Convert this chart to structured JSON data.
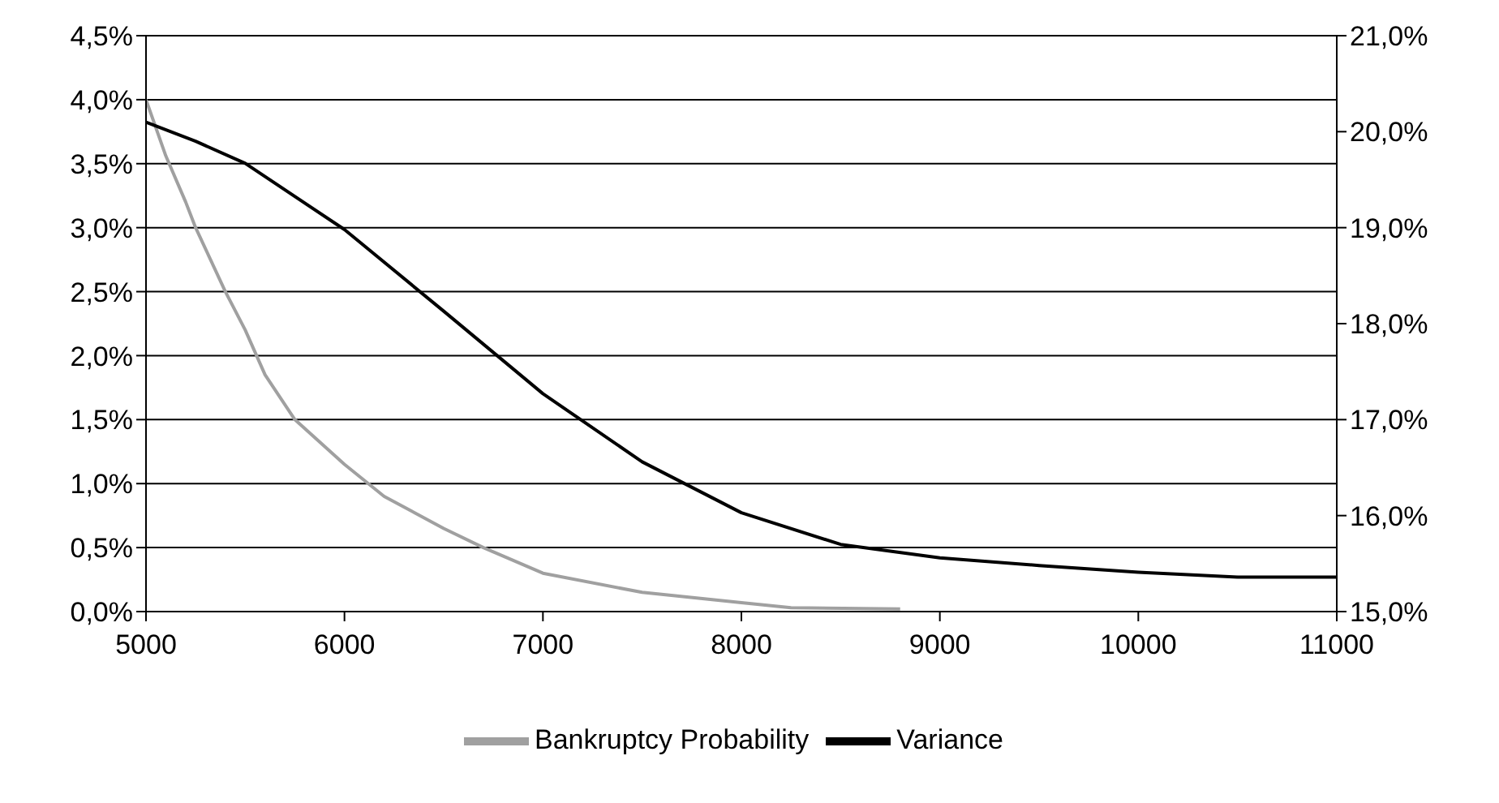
{
  "chart_data": {
    "type": "line",
    "legend": "bottom",
    "grid": "y",
    "marker": "none",
    "line_style": "solid",
    "xlim": [
      5000,
      11000
    ],
    "xticks": [
      5000,
      6000,
      7000,
      8000,
      9000,
      10000,
      11000
    ],
    "ylim": [
      0,
      4.5
    ],
    "yticks": [
      {
        "value": 0,
        "label": "0,0%"
      },
      {
        "value": 0.5,
        "label": "0,5%"
      },
      {
        "value": 1,
        "label": "1,0%"
      },
      {
        "value": 1.5,
        "label": "1,5%"
      },
      {
        "value": 2,
        "label": "2,0%"
      },
      {
        "value": 2.5,
        "label": "2,5%"
      },
      {
        "value": 3,
        "label": "3,0%"
      },
      {
        "value": 3.5,
        "label": "3,5%"
      },
      {
        "value": 4,
        "label": "4,0%"
      },
      {
        "value": 4.5,
        "label": "4,5%"
      }
    ],
    "y2lim": [
      15,
      21
    ],
    "y2ticks": [
      {
        "value": 15,
        "label": "15,0%"
      },
      {
        "value": 16,
        "label": "16,0%"
      },
      {
        "value": 17,
        "label": "17,0%"
      },
      {
        "value": 18,
        "label": "18,0%"
      },
      {
        "value": 19,
        "label": "19,0%"
      },
      {
        "value": 20,
        "label": "20,0%"
      },
      {
        "value": 21,
        "label": "21,0%"
      }
    ],
    "series": [
      {
        "name": "Bankruptcy Probability",
        "color": "#a0a0a0",
        "x": [
          5000,
          5100,
          5200,
          5250,
          5400,
          5500,
          5600,
          5750,
          6000,
          6200,
          6500,
          6700,
          7000,
          7500,
          8000,
          8250,
          8800
        ],
        "values": [
          4.0,
          3.56,
          3.2,
          3.0,
          2.5,
          2.2,
          1.85,
          1.5,
          1.15,
          0.9,
          0.65,
          0.5,
          0.3,
          0.15,
          0.07,
          0.03,
          0.02
        ]
      },
      {
        "name": "Variance",
        "color": "#000000",
        "axis": "y2",
        "x": [
          5000,
          5250,
          5500,
          6000,
          6500,
          7000,
          7500,
          8000,
          8500,
          9000,
          9500,
          10000,
          10500,
          11000
        ],
        "values": [
          20.1,
          19.9,
          19.67,
          18.98,
          18.13,
          17.27,
          16.56,
          16.03,
          15.7,
          15.56,
          15.48,
          15.41,
          15.36,
          15.36
        ]
      }
    ]
  }
}
